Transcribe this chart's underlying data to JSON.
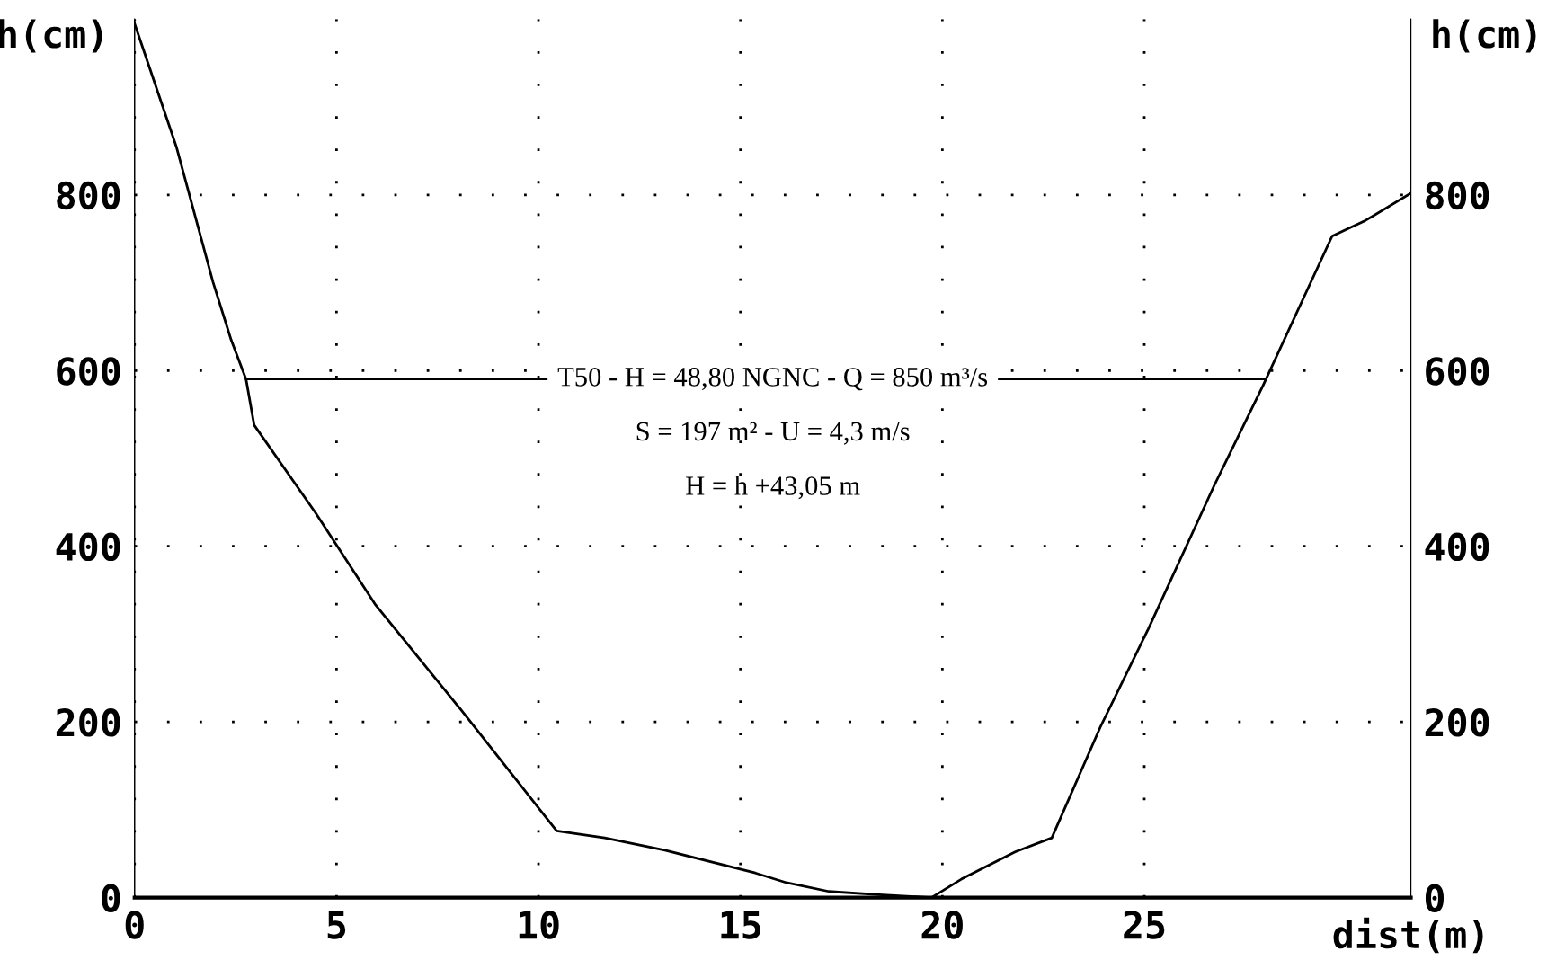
{
  "chart_data": {
    "type": "line",
    "xlabel": "dist(m)",
    "ylabel": "h(cm)",
    "y2label": "h(cm)",
    "xlim": [
      0,
      31.6
    ],
    "xticks": [
      0,
      5,
      10,
      15,
      20,
      25
    ],
    "ylim": [
      0,
      1000
    ],
    "yticks": [
      0,
      200,
      400,
      600,
      800
    ],
    "y2lim": [
      0,
      1000
    ],
    "y2ticks": [
      0,
      200,
      400,
      600,
      800
    ],
    "grid": true,
    "series": [
      {
        "color": "#000000",
        "x": [
          0,
          1.04,
          1.94,
          2.39,
          2.76,
          2.96,
          4.48,
          5.97,
          8.06,
          10.45,
          11.64,
          13.13,
          15.37,
          16.14,
          17.19,
          18.52,
          19.73,
          20.47,
          21.8,
          22.71,
          23.91,
          25.1,
          26.73,
          27.94,
          29.65,
          30.48,
          31.6
        ],
        "values": [
          995,
          854,
          701,
          635,
          590,
          538,
          438,
          333,
          215,
          76,
          68,
          54,
          28,
          17,
          7,
          3,
          0,
          21,
          52,
          68,
          194,
          306,
          469,
          583,
          753,
          771,
          802
        ]
      }
    ],
    "ref_lines": [
      {
        "axis": "y",
        "value": 590,
        "color": "#000000"
      }
    ],
    "annotations": [
      "T50 - H = 48,80 NGNC - Q = 850 m³/s",
      "S = 197 m² - U = 4,3 m/s",
      "H = h +43,05 m"
    ]
  }
}
